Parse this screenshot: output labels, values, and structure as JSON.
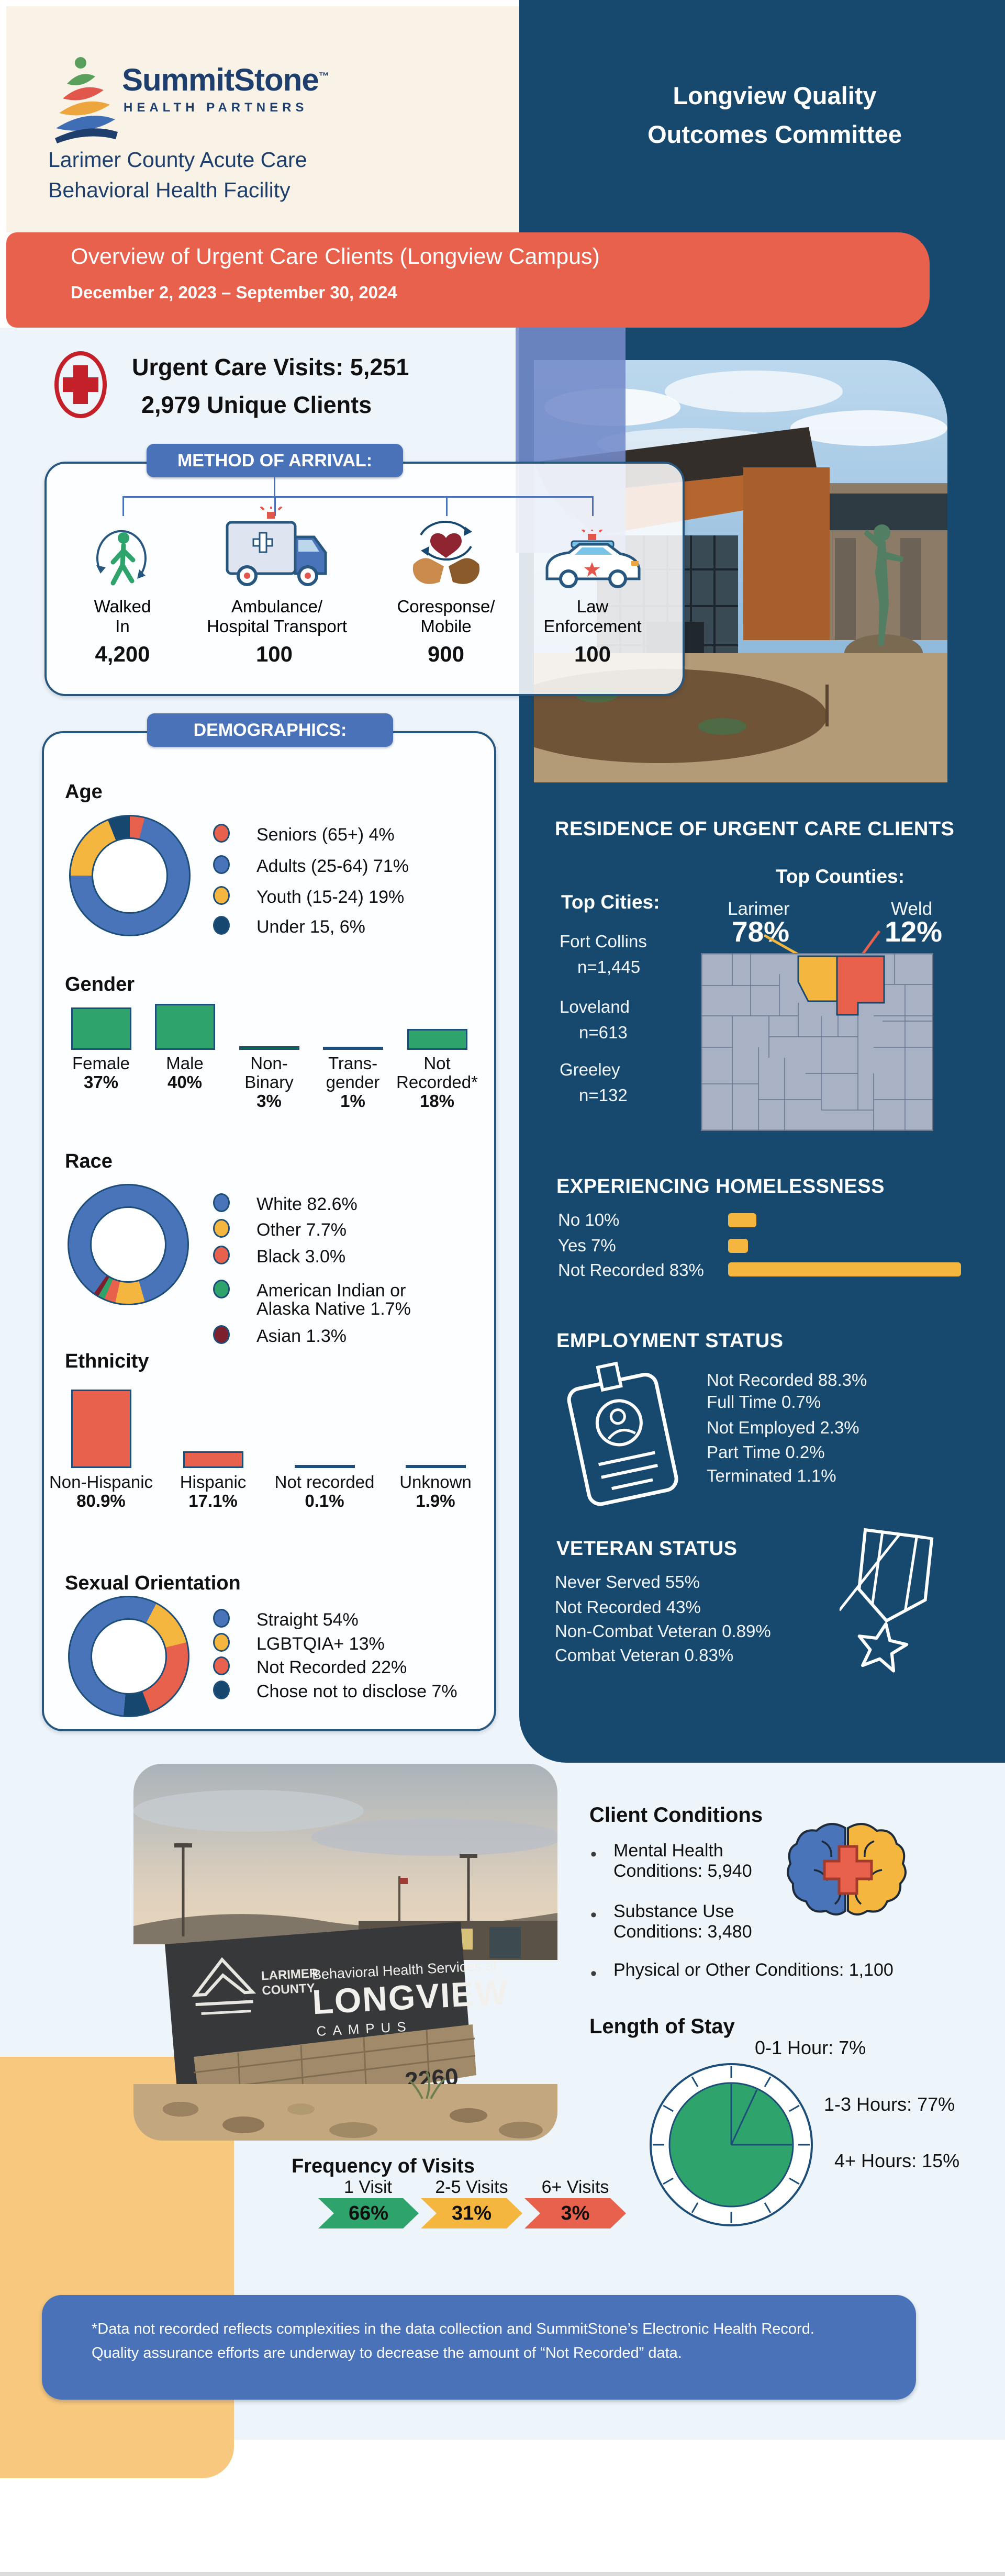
{
  "header": {
    "brand_name": "SummitStone",
    "brand_tm": "™",
    "brand_sub": "HEALTH PARTNERS",
    "facility_line1": "Larimer County Acute Care",
    "facility_line2": "Behavioral Health Facility",
    "committee_line1": "Longview Quality",
    "committee_line2": "Outcomes Committee"
  },
  "banner": {
    "title": "Overview of Urgent Care Clients (Longview Campus)",
    "dates": "December 2, 2023 – September 30, 2024"
  },
  "summary": {
    "visits": "Urgent Care Visits: 5,251",
    "unique_clients": "2,979 Unique Clients"
  },
  "arrival": {
    "badge": "METHOD OF ARRIVAL:",
    "items": [
      {
        "icon": "walking-person-icon",
        "label1": "Walked",
        "label2": "In",
        "value": "4,200"
      },
      {
        "icon": "ambulance-icon",
        "label1": "Ambulance/",
        "label2": "Hospital Transport",
        "value": "100"
      },
      {
        "icon": "hands-heart-icon",
        "label1": "Coresponse/",
        "label2": "Mobile",
        "value": "900"
      },
      {
        "icon": "police-car-icon",
        "label1": "Law",
        "label2": "Enforcement",
        "value": "100"
      }
    ]
  },
  "demographics": {
    "badge": "DEMOGRAPHICS:",
    "age_title": "Age",
    "gender_title": "Gender",
    "race_title": "Race",
    "ethnicity_title": "Ethnicity",
    "orientation_title": "Sexual Orientation"
  },
  "residence": {
    "title": "RESIDENCE OF URGENT CARE CLIENTS",
    "cities_title": "Top Cities:",
    "counties_title": "Top Counties:",
    "cities": [
      {
        "name": "Fort Collins",
        "n": "n=1,445"
      },
      {
        "name": "Loveland",
        "n": "n=613"
      },
      {
        "name": "Greeley",
        "n": "n=132"
      }
    ],
    "counties": [
      {
        "name": "Larimer",
        "pct": "78%",
        "color": "#F4B63F"
      },
      {
        "name": "Weld",
        "pct": "12%",
        "color": "#E8614D"
      }
    ]
  },
  "homelessness": {
    "title": "EXPERIENCING HOMELESSNESS",
    "rows": [
      {
        "label": "No 10%"
      },
      {
        "label": "Yes 7%"
      },
      {
        "label": "Not Recorded 83%"
      }
    ]
  },
  "employment": {
    "title": "EMPLOYMENT STATUS",
    "lines": [
      "Not Recorded 88.3%",
      "Full Time 0.7%",
      "Not Employed 2.3%",
      "Part Time 0.2%",
      "Terminated 1.1%"
    ]
  },
  "veteran": {
    "title": "VETERAN STATUS",
    "lines": [
      "Never Served 55%",
      "Not Recorded 43%",
      "Non-Combat Veteran 0.89%",
      "Combat Veteran 0.83%"
    ]
  },
  "conditions": {
    "title": "Client Conditions",
    "b1_line1": "Mental Health",
    "b1_line2": "Conditions: 5,940",
    "b2_line1": "Substance Use",
    "b2_line2": "Conditions: 3,480",
    "b3_line1": "Physical or Other Conditions: 1,100"
  },
  "length_of_stay": {
    "title": "Length of Stay",
    "label_0": "0-1 Hour: 7%",
    "label_1": "1-3 Hours: 77%",
    "label_2": "4+ Hours: 15%"
  },
  "frequency": {
    "title": "Frequency of Visits",
    "items": [
      {
        "label": "1 Visit",
        "pct": "66%"
      },
      {
        "label": "2-5 Visits",
        "pct": "31%"
      },
      {
        "label": "6+ Visits",
        "pct": "3%"
      }
    ]
  },
  "footnote": "*Data not recorded reflects complexities in the data collection and SummitStone’s Electronic Health Record.  Quality assurance efforts are underway to decrease the amount of “Not Recorded” data.",
  "campus_sign": {
    "org_line1": "LARIMER",
    "org_line2": "COUNTY",
    "line1": "Behavioral Health Services at",
    "line2": "LONGVIEW",
    "line3": "CAMPUS",
    "address": "2260"
  },
  "chart_data": [
    {
      "id": "age",
      "type": "donut",
      "title": "Age",
      "start_deg": 0,
      "legend_position": "right",
      "slices": [
        {
          "label": "Seniors (65+)",
          "value": 4,
          "color": "#E8614D",
          "legend": "Seniors (65+) 4%"
        },
        {
          "label": "Adults (25-64)",
          "value": 71,
          "color": "#4A74BA",
          "legend": "Adults (25-64)  71%"
        },
        {
          "label": "Youth (15-24)",
          "value": 19,
          "color": "#F4B63F",
          "legend": "Youth (15-24) 19%"
        },
        {
          "label": "Under 15",
          "value": 6,
          "color": "#16486F",
          "legend": "Under 15, 6%"
        }
      ]
    },
    {
      "id": "gender",
      "type": "bar",
      "title": "Gender",
      "bar_color": "#2EA36B",
      "ylim": [
        0,
        45
      ],
      "bars": [
        {
          "label1": "Female",
          "label2": "",
          "pct": "37%",
          "value": 37
        },
        {
          "label1": "Male",
          "label2": "",
          "pct": "40%",
          "value": 40
        },
        {
          "label1": "Non-",
          "label2": "Binary",
          "pct": "3%",
          "value": 3
        },
        {
          "label1": "Trans-",
          "label2": "gender",
          "pct": "1%",
          "value": 1
        },
        {
          "label1": "Not",
          "label2": "Recorded*",
          "pct": "18%",
          "value": 18
        }
      ]
    },
    {
      "id": "race",
      "type": "donut",
      "title": "Race",
      "start_deg": 215,
      "legend_position": "right",
      "slices": [
        {
          "label": "White",
          "value": 82.6,
          "color": "#4A74BA",
          "legend": "White 82.6%"
        },
        {
          "label": "Other",
          "value": 7.7,
          "color": "#F4B63F",
          "legend": "Other 7.7%"
        },
        {
          "label": "Black",
          "value": 3.0,
          "color": "#E8614D",
          "legend": "Black 3.0%"
        },
        {
          "label": "American Indian or Alaska Native",
          "value": 1.7,
          "color": "#2EA36B",
          "legend1": "American Indian or",
          "legend2": "Alaska Native 1.7%"
        },
        {
          "label": "Asian",
          "value": 1.3,
          "color": "#7E1F2D",
          "legend": "Asian 1.3%"
        }
      ]
    },
    {
      "id": "ethnicity",
      "type": "bar",
      "title": "Ethnicity",
      "bar_color": "#E8614D",
      "ylim": [
        0,
        85
      ],
      "bars": [
        {
          "label1": "Non-Hispanic",
          "pct": "80.9%",
          "value": 80.9
        },
        {
          "label1": "Hispanic",
          "pct": "17.1%",
          "value": 17.1
        },
        {
          "label1": "Not recorded",
          "pct": "0.1%",
          "value": 0.1
        },
        {
          "label1": "Unknown",
          "pct": "1.9%",
          "value": 1.9
        }
      ]
    },
    {
      "id": "orientation",
      "type": "donut",
      "title": "Sexual Orientation",
      "start_deg": 185,
      "legend_position": "right",
      "slices": [
        {
          "label": "Straight",
          "value": 54,
          "color": "#4A74BA",
          "legend": "Straight 54%"
        },
        {
          "label": "LGBTQIA+",
          "value": 13,
          "color": "#F4B63F",
          "legend": "LGBTQIA+ 13%"
        },
        {
          "label": "Not Recorded",
          "value": 22,
          "color": "#E8614D",
          "legend": "Not Recorded 22%"
        },
        {
          "label": "Chose not to disclose",
          "value": 7,
          "color": "#16486F",
          "legend": "Chose not to disclose 7%"
        }
      ]
    },
    {
      "id": "homeless",
      "type": "bar",
      "orientation": "horizontal",
      "title": "EXPERIENCING HOMELESSNESS",
      "categories": [
        "No",
        "Yes",
        "Not Recorded"
      ],
      "values": [
        10,
        7,
        83
      ],
      "color": "#F4B63F",
      "xlim": [
        0,
        100
      ]
    },
    {
      "id": "arrival",
      "type": "bar",
      "title": "METHOD OF ARRIVAL",
      "categories": [
        "Walked In",
        "Ambulance/Hospital Transport",
        "Coresponse/Mobile",
        "Law Enforcement"
      ],
      "values": [
        4200,
        100,
        900,
        100
      ]
    },
    {
      "id": "los",
      "type": "pie",
      "title": "Length of Stay",
      "categories": [
        "0-1 Hour",
        "1-3 Hours",
        "4+ Hours"
      ],
      "values": [
        7,
        77,
        15
      ],
      "color": "#2EA36B",
      "wedge_angles_deg": [
        0,
        25,
        90
      ]
    },
    {
      "id": "frequency",
      "type": "bar",
      "title": "Frequency of Visits",
      "categories": [
        "1 Visit",
        "2-5 Visits",
        "6+ Visits"
      ],
      "values": [
        66,
        31,
        3
      ],
      "colors": [
        "#2EA36B",
        "#F4B63F",
        "#E8614D"
      ]
    },
    {
      "id": "residence_counties",
      "type": "pie",
      "categories": [
        "Larimer",
        "Weld"
      ],
      "values": [
        78,
        12
      ]
    },
    {
      "id": "residence_cities",
      "type": "table",
      "categories": [
        "Fort Collins",
        "Loveland",
        "Greeley"
      ],
      "values": [
        1445,
        613,
        132
      ]
    },
    {
      "id": "employment",
      "type": "table",
      "categories": [
        "Not Recorded",
        "Full Time",
        "Not Employed",
        "Part Time",
        "Terminated"
      ],
      "values": [
        88.3,
        0.7,
        2.3,
        0.2,
        1.1
      ]
    },
    {
      "id": "veteran",
      "type": "table",
      "categories": [
        "Never Served",
        "Not Recorded",
        "Non-Combat Veteran",
        "Combat Veteran"
      ],
      "values": [
        55,
        43,
        0.89,
        0.83
      ]
    },
    {
      "id": "conditions",
      "type": "table",
      "categories": [
        "Mental Health Conditions",
        "Substance Use Conditions",
        "Physical or Other Conditions"
      ],
      "values": [
        5940,
        3480,
        1100
      ]
    }
  ]
}
